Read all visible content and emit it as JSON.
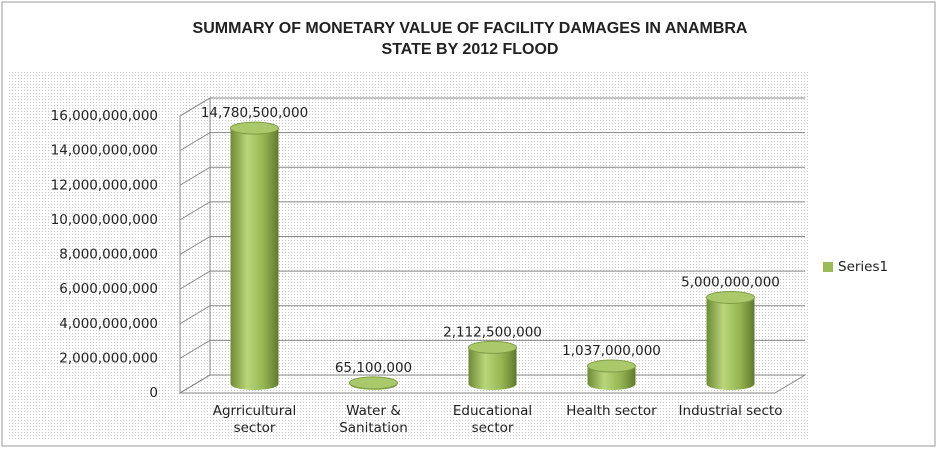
{
  "chart_data": {
    "type": "bar3d",
    "title": "SUMMARY OF MONETARY VALUE OF FACILITY  DAMAGES IN ANAMBRA STATE BY 2012 FLOOD",
    "categories": [
      "Agrricultural sector",
      "Water & Sanitation",
      "Educational sector",
      "Health sector",
      "Industrial secto"
    ],
    "series": [
      {
        "name": "Series1",
        "color": "#9bbb59",
        "values": [
          14780500000,
          65100000,
          2112500000,
          1037000000,
          5000000000
        ],
        "value_labels": [
          "14,780,500,000",
          "65,100,000",
          "2,112,500,000",
          "1,037,000,000",
          "5,000,000,000"
        ]
      }
    ],
    "ylim": [
      0,
      16000000000
    ],
    "yticks": [
      0,
      {
        "value": 2000000000,
        "label": "2,000,000,000"
      },
      {
        "value": 4000000000,
        "label": "4,000,000,000"
      },
      {
        "value": 6000000000,
        "label": "6,000,000,000"
      },
      {
        "value": 8000000000,
        "label": "8,000,000,000"
      },
      {
        "value": 10000000000,
        "label": "10,000,000,000"
      },
      {
        "value": 12000000000,
        "label": "12,000,000,000"
      },
      {
        "value": 14000000000,
        "label": "14,000,000,000"
      },
      {
        "value": 16000000000,
        "label": "16,000,000,000"
      }
    ],
    "grid": true,
    "legend": "right"
  }
}
